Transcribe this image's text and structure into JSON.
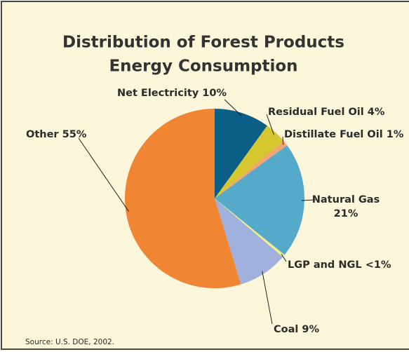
{
  "chart_data": {
    "type": "pie",
    "title": [
      "Distribution of Forest Products",
      "Energy Consumption"
    ],
    "categories": [
      "Net Electricity",
      "Residual Fuel Oil",
      "Distillate Fuel Oil",
      "Natural Gas",
      "LGP and NGL",
      "Coal",
      "Other"
    ],
    "values": [
      10,
      4,
      1,
      21,
      0.5,
      9,
      55
    ],
    "value_labels": [
      "10%",
      "4%",
      "1%",
      "21%",
      "<1%",
      "9%",
      "55%"
    ],
    "colors": [
      "#0b5f87",
      "#d6c72f",
      "#f2a472",
      "#55a9c9",
      "#f4ef8c",
      "#9fb1dc",
      "#f08533"
    ],
    "source": "Source: U.S. DOE, 2002."
  }
}
